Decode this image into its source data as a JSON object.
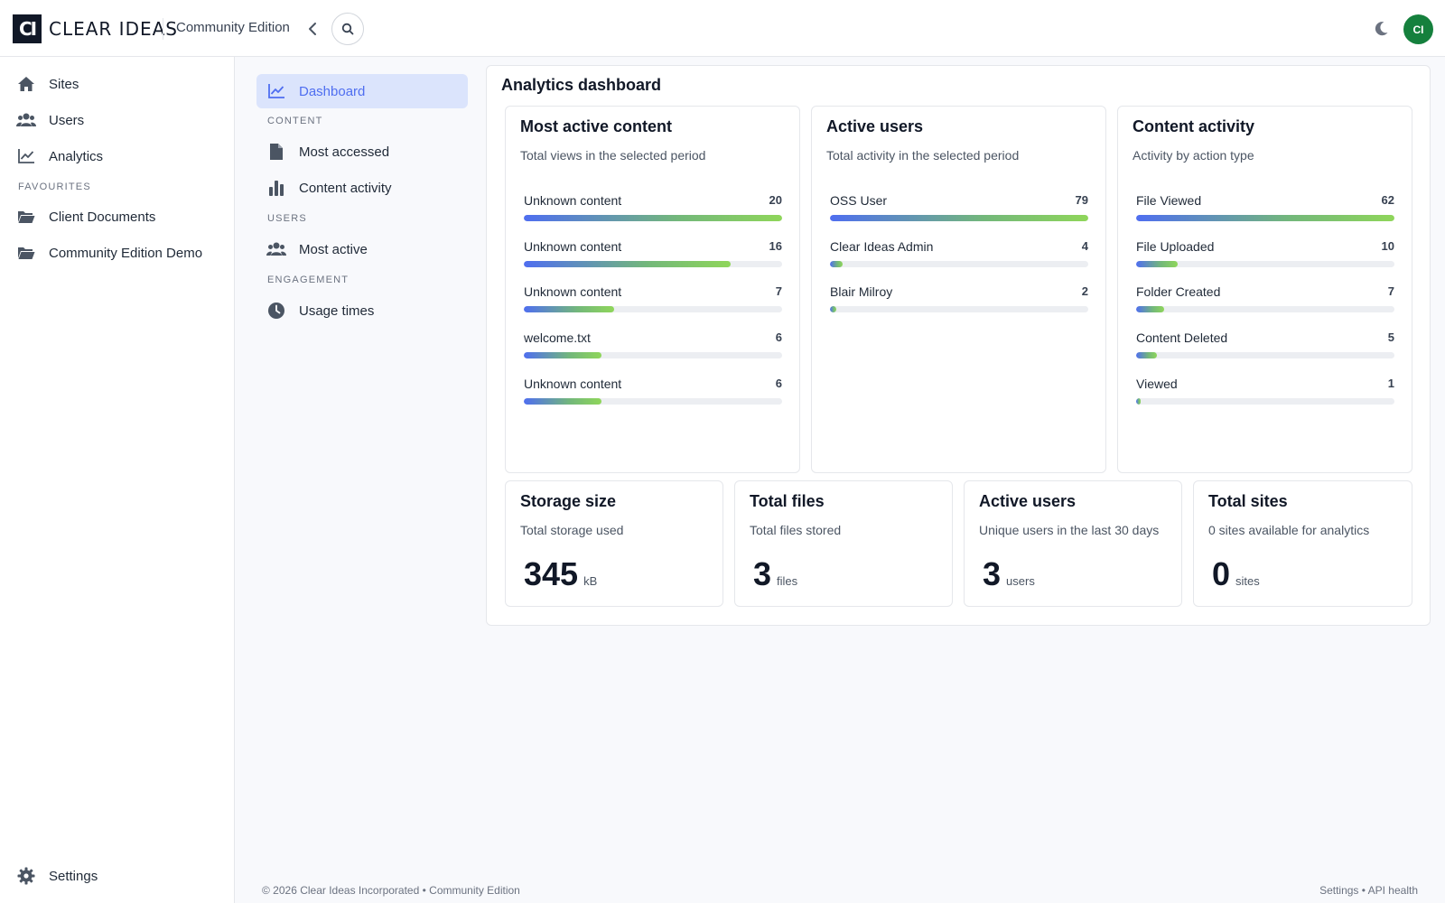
{
  "app": {
    "logo_mark": "CI",
    "logo_text": "CLEAR IDEAS",
    "edition": "Community Edition",
    "avatar_initials": "CI"
  },
  "sidebar": {
    "items": [
      {
        "label": "Sites",
        "icon": "home-icon"
      },
      {
        "label": "Users",
        "icon": "users-icon"
      },
      {
        "label": "Analytics",
        "icon": "chart-line-icon"
      }
    ],
    "favourites_label": "FAVOURITES",
    "favourites": [
      {
        "label": "Client Documents",
        "icon": "folder-icon"
      },
      {
        "label": "Community Edition Demo",
        "icon": "folder-icon"
      }
    ],
    "settings_label": "Settings"
  },
  "subnav": {
    "dashboard": "Dashboard",
    "content_label": "CONTENT",
    "most_accessed": "Most accessed",
    "content_activity": "Content activity",
    "users_label": "USERS",
    "most_active": "Most active",
    "engagement_label": "ENGAGEMENT",
    "usage_times": "Usage times"
  },
  "main": {
    "title": "Analytics dashboard",
    "most_active_content": {
      "title": "Most active content",
      "subtitle": "Total views in the selected period",
      "rows": [
        {
          "label": "Unknown content",
          "value": "20",
          "fraction": 1.0
        },
        {
          "label": "Unknown content",
          "value": "16",
          "fraction": 0.8
        },
        {
          "label": "Unknown content",
          "value": "7",
          "fraction": 0.35
        },
        {
          "label": "welcome.txt",
          "value": "6",
          "fraction": 0.3
        },
        {
          "label": "Unknown content",
          "value": "6",
          "fraction": 0.3
        }
      ]
    },
    "active_users": {
      "title": "Active users",
      "subtitle": "Total activity in the selected period",
      "rows": [
        {
          "label": "OSS User",
          "value": "79",
          "fraction": 1.0
        },
        {
          "label": "Clear Ideas Admin",
          "value": "4",
          "fraction": 0.05
        },
        {
          "label": "Blair Milroy",
          "value": "2",
          "fraction": 0.025
        }
      ]
    },
    "content_activity": {
      "title": "Content activity",
      "subtitle": "Activity by action type",
      "rows": [
        {
          "label": "File Viewed",
          "value": "62",
          "fraction": 1.0
        },
        {
          "label": "File Uploaded",
          "value": "10",
          "fraction": 0.16
        },
        {
          "label": "Folder Created",
          "value": "7",
          "fraction": 0.11
        },
        {
          "label": "Content Deleted",
          "value": "5",
          "fraction": 0.08
        },
        {
          "label": "Viewed",
          "value": "1",
          "fraction": 0.016
        }
      ]
    },
    "stats": [
      {
        "title": "Storage size",
        "subtitle": "Total storage used",
        "value": "345",
        "unit": "kB"
      },
      {
        "title": "Total files",
        "subtitle": "Total files stored",
        "value": "3",
        "unit": "files"
      },
      {
        "title": "Active users",
        "subtitle": "Unique users in the last 30 days",
        "value": "3",
        "unit": "users"
      },
      {
        "title": "Total sites",
        "subtitle": "0 sites available for analytics",
        "value": "0",
        "unit": "sites"
      }
    ]
  },
  "footer": {
    "left": "© 2026 Clear Ideas Incorporated • Community Edition",
    "right": "Settings • API health"
  },
  "colors": {
    "accent": "#4f6ef0",
    "active_bg": "#dbe4fc",
    "avatar": "#15803d",
    "bar_start": "#4f6ef0",
    "bar_end": "#8fd65a"
  }
}
